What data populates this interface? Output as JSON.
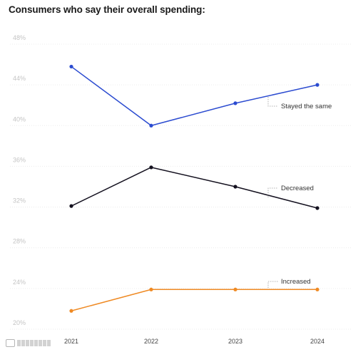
{
  "header": {
    "title": "Consumers who say their overall spending:"
  },
  "colors": {
    "stayed": "#2b4bd0",
    "decreased": "#14111f",
    "increased": "#ef8a24"
  },
  "chart_data": {
    "type": "line",
    "title": "Consumers who say their overall spending:",
    "x": [
      "2021",
      "2022",
      "2023",
      "2024"
    ],
    "ylim": [
      20,
      48
    ],
    "yticks": [
      "20%",
      "24%",
      "28%",
      "32%",
      "36%",
      "40%",
      "44%",
      "48%"
    ],
    "ytick_values": [
      20,
      24,
      28,
      32,
      36,
      40,
      44,
      48
    ],
    "grid": true,
    "series": [
      {
        "name": "Stayed the same",
        "color_key": "stayed",
        "values": [
          45.8,
          40.0,
          42.2,
          44.0
        ]
      },
      {
        "name": "Decreased",
        "color_key": "decreased",
        "values": [
          32.1,
          35.9,
          34.0,
          31.9
        ]
      },
      {
        "name": "Increased",
        "color_key": "increased",
        "values": [
          21.8,
          23.9,
          23.9,
          23.9
        ]
      }
    ]
  },
  "logo": {
    "icon": "logo-icon"
  }
}
